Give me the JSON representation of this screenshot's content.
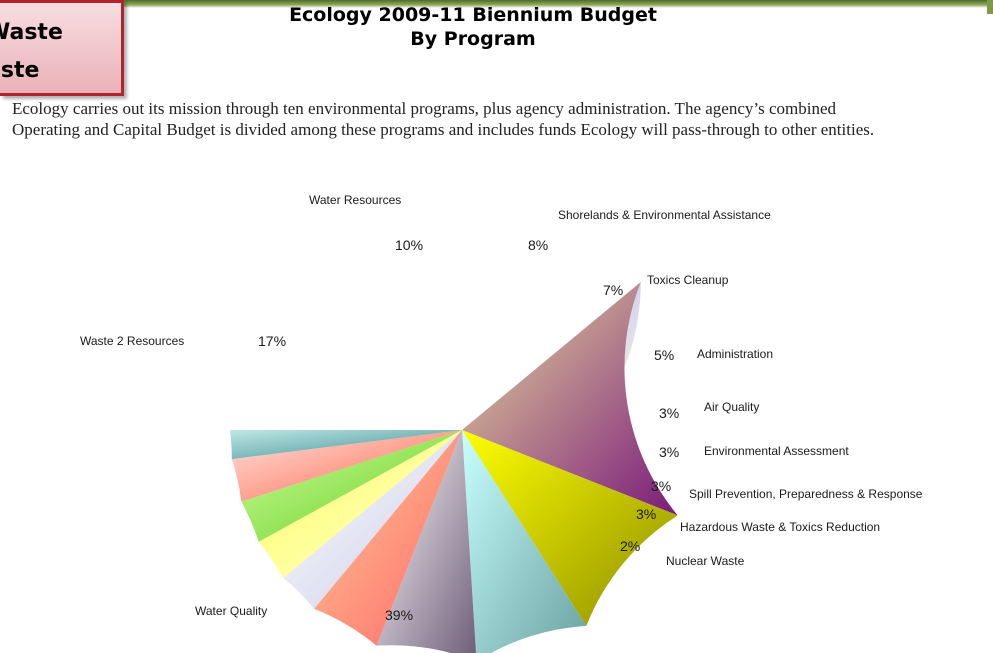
{
  "callout": {
    "line1": "Waste",
    "line2": "aste"
  },
  "header": {
    "title1": "Ecology 2009-11 Biennium Budget",
    "title2": "By Program"
  },
  "intro": "Ecology carries out its mission through ten environmental programs, plus agency administration. The agency’s combined Operating and Capital Budget is divided among these programs and includes funds Ecology will pass-through to other entities.",
  "chart_data": {
    "type": "pie",
    "title": "Ecology 2009-11 Biennium Budget By Program",
    "slices": [
      {
        "label": "Water Quality",
        "value": 39,
        "value_label": "39%",
        "colors": [
          "#b3b3ff",
          "#ffffd8"
        ]
      },
      {
        "label": "Waste 2 Resources",
        "value": 17,
        "value_label": "17%",
        "colors": [
          "#e8dc9c",
          "#7a1a7a"
        ]
      },
      {
        "label": "Water Resources",
        "value": 10,
        "value_label": "10%",
        "colors": [
          "#ffff00",
          "#8c8c00"
        ]
      },
      {
        "label": "Shorelands & Environmental Assistance",
        "value": 8,
        "value_label": "8%",
        "colors": [
          "#c8ffff",
          "#6aa0a0"
        ]
      },
      {
        "label": "Toxics Cleanup",
        "value": 7,
        "value_label": "7%",
        "colors": [
          "#ffffff",
          "#6e5c78"
        ]
      },
      {
        "label": "Administration",
        "value": 5,
        "value_label": "5%",
        "colors": [
          "#ffcc99",
          "#ff6666"
        ]
      },
      {
        "label": "Air Quality",
        "value": 3,
        "value_label": "3%",
        "colors": [
          "#ffffff",
          "#c8cce8"
        ]
      },
      {
        "label": "Environmental Assessment",
        "value": 3,
        "value_label": "3%",
        "colors": [
          "#ffff66",
          "#ffffcc"
        ]
      },
      {
        "label": "Spill Prevention, Preparedness & Response",
        "value": 3,
        "value_label": "3%",
        "colors": [
          "#ccff99",
          "#66cc22"
        ]
      },
      {
        "label": "Hazardous Waste & Toxics Reduction",
        "value": 3,
        "value_label": "3%",
        "colors": [
          "#ffe0e0",
          "#ff6644"
        ]
      },
      {
        "label": "Nuclear Waste",
        "value": 2,
        "value_label": "2%",
        "colors": [
          "#c0e8e8",
          "#3a8a8a"
        ]
      }
    ]
  }
}
